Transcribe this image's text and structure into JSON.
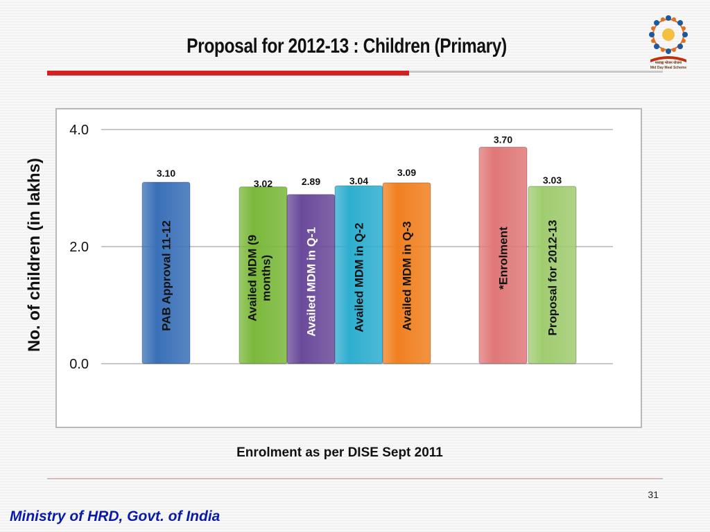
{
  "slide": {
    "title": "Proposal for 2012-13 : Children (Primary)",
    "caption": "Enrolment as per DISE Sept 2011",
    "page_number": "31",
    "footer": "Ministry of HRD, Govt. of India",
    "logo_text_line1": "मध्याह्न भोजन योजना",
    "logo_text_line2": "Mid Day Meal Scheme"
  },
  "chart_data": {
    "type": "bar",
    "title": "",
    "xlabel": "",
    "ylabel": "No. of children (in lakhs)",
    "ylim": [
      0,
      4
    ],
    "yticks": [
      "0.0",
      "2.0",
      "4.0"
    ],
    "grid": true,
    "legend": "none",
    "categories": [
      "PAB Approval 11-12",
      "Availed MDM (9 months)",
      "Availed MDM in Q-1",
      "Availed MDM in Q-2",
      "Availed MDM in Q-3",
      "*Enrolment",
      "Proposal for 2012-13"
    ],
    "values": [
      3.1,
      3.02,
      2.89,
      3.04,
      3.09,
      3.7,
      3.03
    ],
    "value_labels": [
      "3.10",
      "3.02",
      "2.89",
      "3.04",
      "3.09",
      "3.70",
      "3.03"
    ],
    "colors": [
      "#3a70b8",
      "#7ab83a",
      "#6a4a9a",
      "#2eaed0",
      "#f08020",
      "#e07878",
      "#a0cc70"
    ],
    "label_colors": [
      "#111111",
      "#111111",
      "#ffffff",
      "#111111",
      "#111111",
      "#111111",
      "#111111"
    ]
  }
}
